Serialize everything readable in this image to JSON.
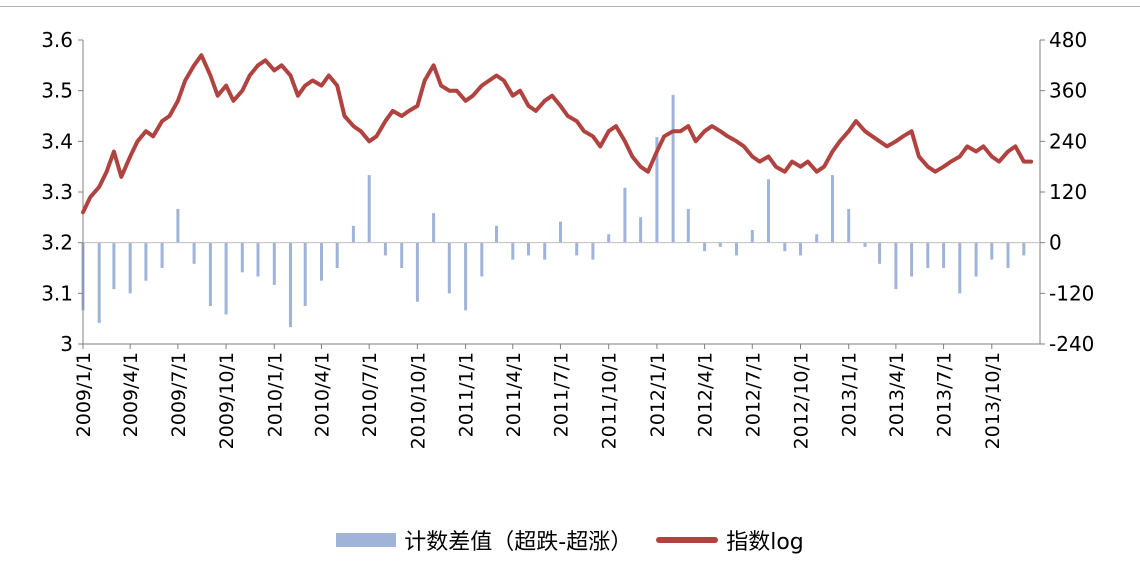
{
  "chart_data": {
    "type": "bar+line",
    "title": "",
    "colors": {
      "bars": "#9fb4d8",
      "line": "#b0423f",
      "axis": "#808080"
    },
    "legend_position": "bottom",
    "left_axis": {
      "ylim": [
        3.0,
        3.6
      ],
      "ticks": [
        "3",
        "3.1",
        "3.2",
        "3.3",
        "3.4",
        "3.5",
        "3.6"
      ]
    },
    "right_axis": {
      "ylim": [
        -240,
        480
      ],
      "ticks": [
        "-240",
        "-120",
        "0",
        "120",
        "240",
        "360",
        "480"
      ]
    },
    "x_tick_labels": [
      "2009/1/1",
      "2009/4/1",
      "2009/7/1",
      "2009/10/1",
      "2010/1/1",
      "2010/4/1",
      "2010/7/1",
      "2010/10/1",
      "2011/1/1",
      "2011/4/1",
      "2011/7/1",
      "2011/10/1",
      "2012/1/1",
      "2012/4/1",
      "2012/7/1",
      "2012/10/1",
      "2013/1/1",
      "2013/4/1",
      "2013/7/1",
      "2013/10/1"
    ],
    "series": [
      {
        "name": "计数差值（超跌-超涨）",
        "kind": "bar",
        "axis": "right",
        "dates": [
          "2009/1/1",
          "2009/2/1",
          "2009/3/1",
          "2009/4/1",
          "2009/5/1",
          "2009/6/1",
          "2009/7/1",
          "2009/8/1",
          "2009/9/1",
          "2009/10/1",
          "2009/11/1",
          "2009/12/1",
          "2010/1/1",
          "2010/2/1",
          "2010/3/1",
          "2010/4/1",
          "2010/5/1",
          "2010/6/1",
          "2010/7/1",
          "2010/8/1",
          "2010/9/1",
          "2010/10/1",
          "2010/11/1",
          "2010/12/1",
          "2011/1/1",
          "2011/2/1",
          "2011/3/1",
          "2011/4/1",
          "2011/5/1",
          "2011/6/1",
          "2011/7/1",
          "2011/8/1",
          "2011/9/1",
          "2011/10/1",
          "2011/11/1",
          "2011/12/1",
          "2012/1/1",
          "2012/2/1",
          "2012/3/1",
          "2012/4/1",
          "2012/5/1",
          "2012/6/1",
          "2012/7/1",
          "2012/8/1",
          "2012/9/1",
          "2012/10/1",
          "2012/11/1",
          "2012/12/1",
          "2013/1/1",
          "2013/2/1",
          "2013/3/1",
          "2013/4/1",
          "2013/5/1",
          "2013/6/1",
          "2013/7/1",
          "2013/8/1",
          "2013/9/1",
          "2013/10/1",
          "2013/11/1",
          "2013/12/1"
        ],
        "values": [
          -160,
          -190,
          -110,
          -120,
          -90,
          -60,
          80,
          -50,
          -150,
          -170,
          -70,
          -80,
          -100,
          -200,
          -150,
          -90,
          -60,
          40,
          160,
          -30,
          -60,
          -140,
          70,
          -120,
          -160,
          -80,
          40,
          -40,
          -30,
          -40,
          50,
          -30,
          -40,
          20,
          130,
          60,
          250,
          350,
          80,
          -20,
          -10,
          -30,
          30,
          150,
          -20,
          -30,
          20,
          160,
          80,
          -10,
          -50,
          -110,
          -80,
          -60,
          -60,
          -120,
          -80,
          -40,
          -60,
          -30
        ]
      },
      {
        "name": "指数log",
        "kind": "line",
        "axis": "left",
        "dates": [
          "2009/1/1",
          "2009/1/15",
          "2009/2/1",
          "2009/2/15",
          "2009/3/1",
          "2009/3/15",
          "2009/4/1",
          "2009/4/15",
          "2009/5/1",
          "2009/5/15",
          "2009/6/1",
          "2009/6/15",
          "2009/7/1",
          "2009/7/15",
          "2009/8/1",
          "2009/8/15",
          "2009/9/1",
          "2009/9/15",
          "2009/10/1",
          "2009/10/15",
          "2009/11/1",
          "2009/11/15",
          "2009/12/1",
          "2009/12/15",
          "2010/1/1",
          "2010/1/15",
          "2010/2/1",
          "2010/2/15",
          "2010/3/1",
          "2010/3/15",
          "2010/4/1",
          "2010/4/15",
          "2010/5/1",
          "2010/5/15",
          "2010/6/1",
          "2010/6/15",
          "2010/7/1",
          "2010/7/15",
          "2010/8/1",
          "2010/8/15",
          "2010/9/1",
          "2010/9/15",
          "2010/10/1",
          "2010/10/15",
          "2010/11/1",
          "2010/11/15",
          "2010/12/1",
          "2010/12/15",
          "2011/1/1",
          "2011/1/15",
          "2011/2/1",
          "2011/2/15",
          "2011/3/1",
          "2011/3/15",
          "2011/4/1",
          "2011/4/15",
          "2011/5/1",
          "2011/5/15",
          "2011/6/1",
          "2011/6/15",
          "2011/7/1",
          "2011/7/15",
          "2011/8/1",
          "2011/8/15",
          "2011/9/1",
          "2011/9/15",
          "2011/10/1",
          "2011/10/15",
          "2011/11/1",
          "2011/11/15",
          "2011/12/1",
          "2011/12/15",
          "2012/1/1",
          "2012/1/15",
          "2012/2/1",
          "2012/2/15",
          "2012/3/1",
          "2012/3/15",
          "2012/4/1",
          "2012/4/15",
          "2012/5/1",
          "2012/5/15",
          "2012/6/1",
          "2012/6/15",
          "2012/7/1",
          "2012/7/15",
          "2012/8/1",
          "2012/8/15",
          "2012/9/1",
          "2012/9/15",
          "2012/10/1",
          "2012/10/15",
          "2012/11/1",
          "2012/11/15",
          "2012/12/1",
          "2012/12/15",
          "2013/1/1",
          "2013/1/15",
          "2013/2/1",
          "2013/2/15",
          "2013/3/1",
          "2013/3/15",
          "2013/4/1",
          "2013/4/15",
          "2013/5/1",
          "2013/5/15",
          "2013/6/1",
          "2013/6/15",
          "2013/7/1",
          "2013/7/15",
          "2013/8/1",
          "2013/8/15",
          "2013/9/1",
          "2013/9/15",
          "2013/10/1",
          "2013/10/15",
          "2013/11/1",
          "2013/11/15",
          "2013/12/1",
          "2013/12/15"
        ],
        "values": [
          3.26,
          3.29,
          3.31,
          3.34,
          3.38,
          3.33,
          3.37,
          3.4,
          3.42,
          3.41,
          3.44,
          3.45,
          3.48,
          3.52,
          3.55,
          3.57,
          3.53,
          3.49,
          3.51,
          3.48,
          3.5,
          3.53,
          3.55,
          3.56,
          3.54,
          3.55,
          3.53,
          3.49,
          3.51,
          3.52,
          3.51,
          3.53,
          3.51,
          3.45,
          3.43,
          3.42,
          3.4,
          3.41,
          3.44,
          3.46,
          3.45,
          3.46,
          3.47,
          3.52,
          3.55,
          3.51,
          3.5,
          3.5,
          3.48,
          3.49,
          3.51,
          3.52,
          3.53,
          3.52,
          3.49,
          3.5,
          3.47,
          3.46,
          3.48,
          3.49,
          3.47,
          3.45,
          3.44,
          3.42,
          3.41,
          3.39,
          3.42,
          3.43,
          3.4,
          3.37,
          3.35,
          3.34,
          3.38,
          3.41,
          3.42,
          3.42,
          3.43,
          3.4,
          3.42,
          3.43,
          3.42,
          3.41,
          3.4,
          3.39,
          3.37,
          3.36,
          3.37,
          3.35,
          3.34,
          3.36,
          3.35,
          3.36,
          3.34,
          3.35,
          3.38,
          3.4,
          3.42,
          3.44,
          3.42,
          3.41,
          3.4,
          3.39,
          3.4,
          3.41,
          3.42,
          3.37,
          3.35,
          3.34,
          3.35,
          3.36,
          3.37,
          3.39,
          3.38,
          3.39,
          3.37,
          3.36,
          3.38,
          3.39,
          3.36,
          3.36
        ]
      }
    ]
  }
}
